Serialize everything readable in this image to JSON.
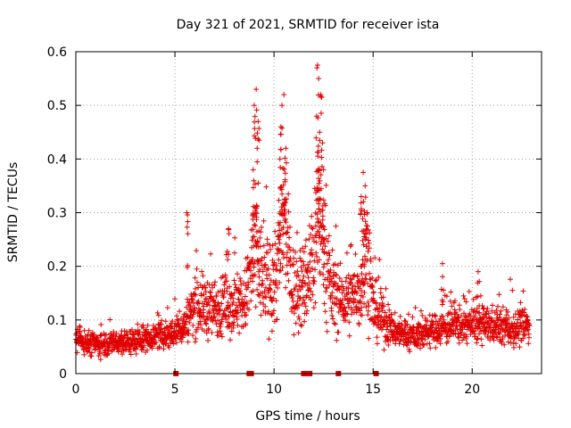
{
  "chart_data": {
    "type": "scatter",
    "title": "Day 321 of 2021, SRMTID for receiver ista",
    "xlabel": "GPS time / hours",
    "ylabel": "SRMTID / TECUs",
    "xlim": [
      0,
      23.5
    ],
    "ylim": [
      0,
      0.6
    ],
    "xticks": [
      0,
      5,
      10,
      15,
      20
    ],
    "xtick_labels": [
      "0",
      "5",
      "10",
      "15",
      "20"
    ],
    "yticks": [
      0,
      0.1,
      0.2,
      0.3,
      0.4,
      0.5,
      0.6
    ],
    "ytick_labels": [
      "0",
      "0.1",
      "0.2",
      "0.3",
      "0.4",
      "0.5",
      "0.6"
    ],
    "grid": true,
    "marker": "+",
    "series": [
      {
        "name": "SRMTID",
        "color": "#e00000",
        "profile": [
          [
            0.0,
            0.06,
            0.02
          ],
          [
            1.0,
            0.055,
            0.02
          ],
          [
            2.0,
            0.058,
            0.02
          ],
          [
            3.0,
            0.06,
            0.02
          ],
          [
            4.0,
            0.07,
            0.02
          ],
          [
            5.0,
            0.075,
            0.025
          ],
          [
            5.5,
            0.09,
            0.03
          ],
          [
            6.0,
            0.13,
            0.05
          ],
          [
            7.0,
            0.12,
            0.05
          ],
          [
            8.0,
            0.13,
            0.05
          ],
          [
            8.5,
            0.13,
            0.05
          ],
          [
            9.0,
            0.22,
            0.12
          ],
          [
            9.5,
            0.17,
            0.07
          ],
          [
            10.0,
            0.16,
            0.07
          ],
          [
            10.5,
            0.27,
            0.12
          ],
          [
            11.0,
            0.15,
            0.07
          ],
          [
            11.5,
            0.16,
            0.07
          ],
          [
            12.0,
            0.22,
            0.12
          ],
          [
            12.3,
            0.3,
            0.12
          ],
          [
            12.8,
            0.16,
            0.07
          ],
          [
            13.5,
            0.13,
            0.05
          ],
          [
            14.3,
            0.15,
            0.06
          ],
          [
            14.7,
            0.22,
            0.1
          ],
          [
            15.0,
            0.12,
            0.05
          ],
          [
            16.0,
            0.08,
            0.025
          ],
          [
            17.0,
            0.07,
            0.025
          ],
          [
            18.0,
            0.08,
            0.025
          ],
          [
            19.0,
            0.09,
            0.03
          ],
          [
            20.0,
            0.09,
            0.03
          ],
          [
            21.0,
            0.09,
            0.03
          ],
          [
            22.0,
            0.085,
            0.03
          ],
          [
            22.9,
            0.09,
            0.03
          ]
        ],
        "peaks": [
          [
            9.1,
            0.53
          ],
          [
            9.0,
            0.5
          ],
          [
            9.2,
            0.47
          ],
          [
            9.15,
            0.42
          ],
          [
            8.95,
            0.38
          ],
          [
            10.5,
            0.52
          ],
          [
            10.4,
            0.5
          ],
          [
            10.35,
            0.46
          ],
          [
            10.6,
            0.42
          ],
          [
            10.3,
            0.4
          ],
          [
            12.2,
            0.575
          ],
          [
            12.25,
            0.55
          ],
          [
            12.35,
            0.52
          ],
          [
            12.15,
            0.48
          ],
          [
            12.3,
            0.45
          ],
          [
            12.45,
            0.43
          ],
          [
            12.5,
            0.38
          ],
          [
            14.5,
            0.375
          ],
          [
            14.6,
            0.35
          ],
          [
            14.4,
            0.33
          ],
          [
            14.7,
            0.3
          ],
          [
            5.6,
            0.3
          ],
          [
            7.7,
            0.27
          ],
          [
            18.5,
            0.205
          ],
          [
            20.3,
            0.19
          ]
        ],
        "zero_points": [
          5.05,
          8.75,
          8.85,
          11.5,
          11.6,
          11.7,
          11.8,
          13.25,
          15.15
        ]
      }
    ]
  }
}
